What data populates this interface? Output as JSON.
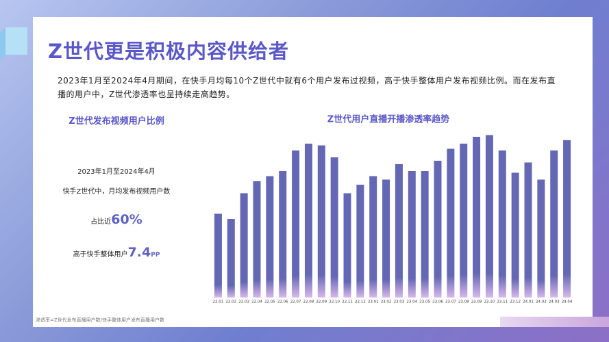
{
  "header": {
    "title": "Z世代更是积极内容供给者",
    "description": "2023年1月至2024年4月期间，在快手月均每10个Z世代中就有6个用户发布过视频，高于快手整体用户发布视频比例。而在发布直播的用户中，Z世代渗透率也呈持续走高趋势。"
  },
  "left_panel": {
    "title": "Z世代发布视频用户比例",
    "period": "2023年1月至2024年4月",
    "subtitle": "快手Z世代中，月均发布视频用户数",
    "stat1_label": "占比近",
    "stat1_value": "60%",
    "stat2_label": "高于快手整体用户",
    "stat2_value": "7.4",
    "stat2_unit": "PP"
  },
  "footnote": "渗透率=Z世代发布直播用户数/快手整体用户发布直播用户数",
  "chart_data": {
    "type": "bar",
    "title": "Z世代用户直播开播渗透率趋势",
    "categories": [
      "22.01",
      "22.02",
      "22.03",
      "22.04",
      "22.05",
      "22.06",
      "22.07",
      "22.08",
      "22.09",
      "22.10",
      "22.11",
      "22.12",
      "23.01",
      "23.02",
      "23.03",
      "23.04",
      "23.05",
      "23.06",
      "23.07",
      "23.08",
      "23.09",
      "23.10",
      "23.11",
      "23.12",
      "24.01",
      "24.02",
      "24.03",
      "24.04"
    ],
    "values": [
      49,
      46,
      61,
      68,
      71,
      74,
      86,
      90,
      89,
      82,
      61,
      66,
      71,
      69,
      78,
      74,
      74,
      80,
      87,
      90,
      94,
      95,
      86,
      73,
      79,
      69,
      86,
      92
    ],
    "color": "#6468b4",
    "ylim": [
      0,
      100
    ]
  }
}
